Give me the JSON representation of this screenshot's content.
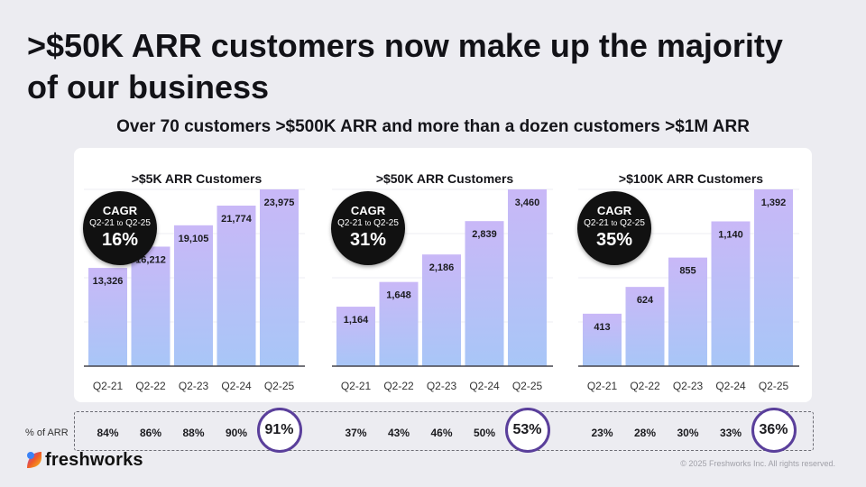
{
  "title_line1": ">$50K ARR customers now make up the majority",
  "title_line2": "of our business",
  "subtitle": "Over 70 customers >$500K ARR and more than a dozen customers >$1M ARR",
  "chart_data": [
    {
      "type": "bar",
      "title": ">$5K ARR Customers",
      "categories": [
        "Q2-21",
        "Q2-22",
        "Q2-23",
        "Q2-24",
        "Q2-25"
      ],
      "values": [
        13326,
        16212,
        19105,
        21774,
        23975
      ],
      "value_labels": [
        "13,326",
        "16,212",
        "19,105",
        "21,774",
        "23,975"
      ],
      "cagr": {
        "label": "CAGR",
        "period_start": "Q2-21",
        "period_to": "to",
        "period_end": "Q2-25",
        "value": "16%"
      },
      "pct_arr": [
        "84%",
        "86%",
        "88%",
        "90%",
        "91%"
      ]
    },
    {
      "type": "bar",
      "title": ">$50K ARR Customers",
      "categories": [
        "Q2-21",
        "Q2-22",
        "Q2-23",
        "Q2-24",
        "Q2-25"
      ],
      "values": [
        1164,
        1648,
        2186,
        2839,
        3460
      ],
      "value_labels": [
        "1,164",
        "1,648",
        "2,186",
        "2,839",
        "3,460"
      ],
      "cagr": {
        "label": "CAGR",
        "period_start": "Q2-21",
        "period_to": "to",
        "period_end": "Q2-25",
        "value": "31%"
      },
      "pct_arr": [
        "37%",
        "43%",
        "46%",
        "50%",
        "53%"
      ]
    },
    {
      "type": "bar",
      "title": ">$100K ARR Customers",
      "categories": [
        "Q2-21",
        "Q2-22",
        "Q2-23",
        "Q2-24",
        "Q2-25"
      ],
      "values": [
        413,
        624,
        855,
        1140,
        1392
      ],
      "value_labels": [
        "413",
        "624",
        "855",
        "1,140",
        "1,392"
      ],
      "cagr": {
        "label": "CAGR",
        "period_start": "Q2-21",
        "period_to": "to",
        "period_end": "Q2-25",
        "value": "35%"
      },
      "pct_arr": [
        "23%",
        "28%",
        "30%",
        "33%",
        "36%"
      ]
    }
  ],
  "pct_arr_label": "% of ARR",
  "logo_text": "freshworks",
  "copyright": "© 2025 Freshworks Inc. All rights reserved.",
  "colors": {
    "bar_top": "#c9b8f7",
    "bar_bottom": "#a8c6f7",
    "circle": "#5a3f9b",
    "badge": "#111111"
  }
}
